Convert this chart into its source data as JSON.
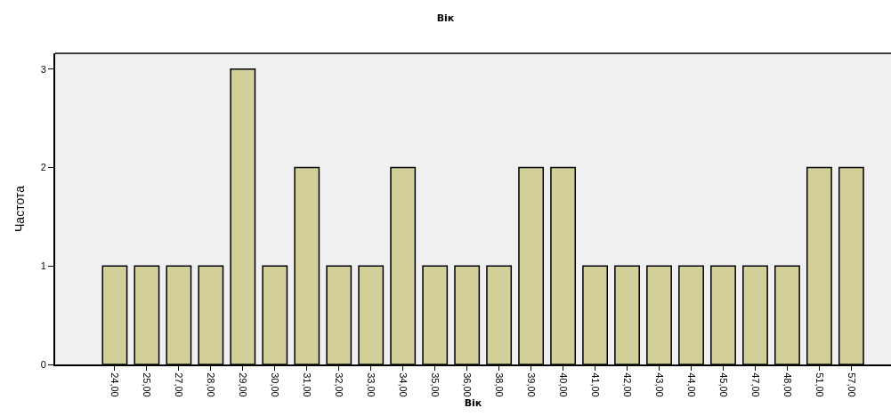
{
  "chart_data": {
    "type": "bar",
    "title": "Вік",
    "xlabel": "Вік",
    "ylabel": "Частота",
    "categories": [
      "24,00",
      "25,00",
      "27,00",
      "28,00",
      "29,00",
      "30,00",
      "31,00",
      "32,00",
      "33,00",
      "34,00",
      "35,00",
      "36,00",
      "38,00",
      "39,00",
      "40,00",
      "41,00",
      "42,00",
      "43,00",
      "44,00",
      "45,00",
      "47,00",
      "48,00",
      "51,00",
      "57,00"
    ],
    "values": [
      1,
      1,
      1,
      1,
      3,
      1,
      2,
      1,
      1,
      2,
      1,
      1,
      1,
      2,
      2,
      1,
      1,
      1,
      1,
      1,
      1,
      1,
      2,
      2
    ],
    "color": "#d3cf98",
    "ylim": [
      0,
      3.16
    ],
    "yticks": [
      0,
      1,
      2,
      3
    ],
    "grid": false
  }
}
